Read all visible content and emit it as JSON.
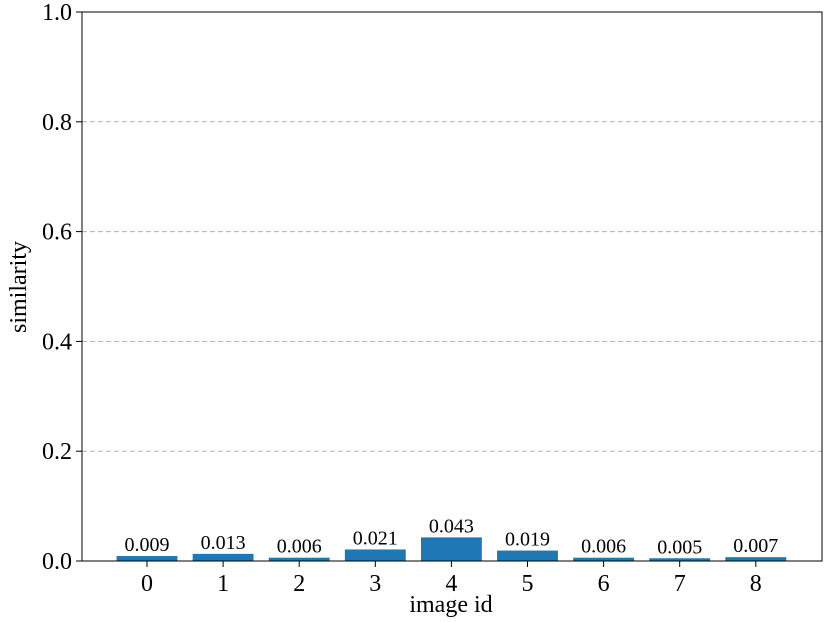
{
  "chart_data": {
    "type": "bar",
    "xlabel": "image id",
    "ylabel": "similarity",
    "categories": [
      "0",
      "1",
      "2",
      "3",
      "4",
      "5",
      "6",
      "7",
      "8"
    ],
    "values": [
      0.009,
      0.013,
      0.006,
      0.021,
      0.043,
      0.019,
      0.006,
      0.005,
      0.007
    ],
    "color": "#1f77b4",
    "ylim": [
      0,
      1.0
    ],
    "yticks": [
      {
        "value": 0,
        "label": "0.0"
      },
      0.2,
      0.4,
      0.6,
      0.8,
      {
        "value": 1.0,
        "label": "1.0"
      }
    ],
    "grid": true
  }
}
